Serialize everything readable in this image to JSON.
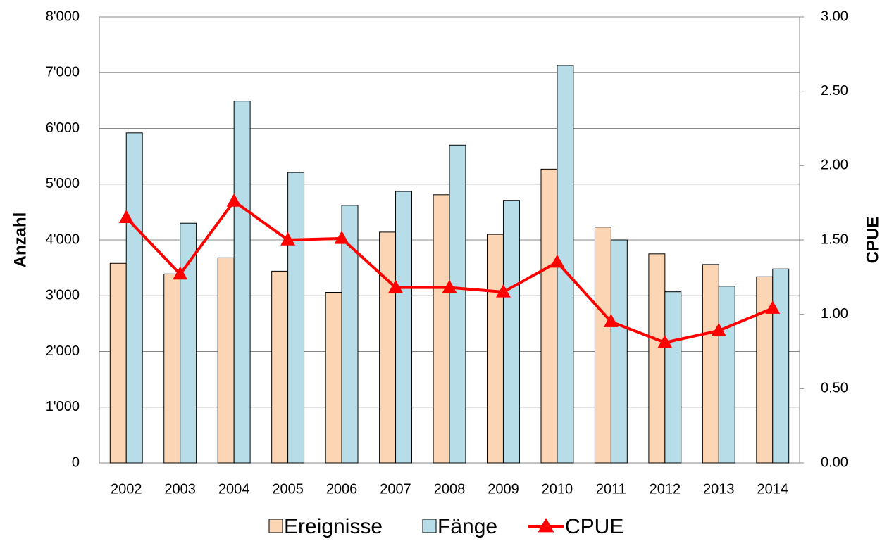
{
  "chart_data": {
    "type": "bar",
    "categories": [
      "2002",
      "2003",
      "2004",
      "2005",
      "2006",
      "2007",
      "2008",
      "2009",
      "2010",
      "2011",
      "2012",
      "2013",
      "2014"
    ],
    "series": [
      {
        "name": "Ereignisse",
        "type": "bar",
        "color": "#fcd5b4",
        "values": [
          3580,
          3390,
          3680,
          3440,
          3060,
          4140,
          4810,
          4100,
          5270,
          4230,
          3750,
          3560,
          3340
        ]
      },
      {
        "name": "Fänge",
        "type": "bar",
        "color": "#b7dee8",
        "values": [
          5920,
          4300,
          6490,
          5210,
          4620,
          4870,
          5700,
          4710,
          7130,
          4000,
          3070,
          3170,
          3480
        ]
      },
      {
        "name": "CPUE",
        "type": "line",
        "axis": "y2",
        "color": "#ff0000",
        "values": [
          1.65,
          1.27,
          1.76,
          1.5,
          1.51,
          1.18,
          1.18,
          1.15,
          1.35,
          0.95,
          0.81,
          0.89,
          1.04
        ]
      }
    ],
    "y_label": "Anzahl",
    "y2_label": "CPUE",
    "ylim": [
      0,
      8000
    ],
    "yticks": [
      0,
      {
        "value": 1000,
        "label": "1'000"
      },
      {
        "value": 2000,
        "label": "2'000"
      },
      {
        "value": 3000,
        "label": "3'000"
      },
      {
        "value": 4000,
        "label": "4'000"
      },
      {
        "value": 5000,
        "label": "5'000"
      },
      {
        "value": 6000,
        "label": "6'000"
      },
      {
        "value": 7000,
        "label": "7'000"
      },
      {
        "value": 8000,
        "label": "8'000"
      }
    ],
    "y2lim": [
      0,
      3
    ],
    "y2ticks": [
      {
        "value": 0,
        "label": "0.00"
      },
      {
        "value": 0.5,
        "label": "0.50"
      },
      {
        "value": 1,
        "label": "1.00"
      },
      {
        "value": 1.5,
        "label": "1.50"
      },
      {
        "value": 2,
        "label": "2.00"
      },
      {
        "value": 2.5,
        "label": "2.50"
      },
      {
        "value": 3,
        "label": "3.00"
      }
    ],
    "grid": true,
    "legend": "bottom"
  }
}
